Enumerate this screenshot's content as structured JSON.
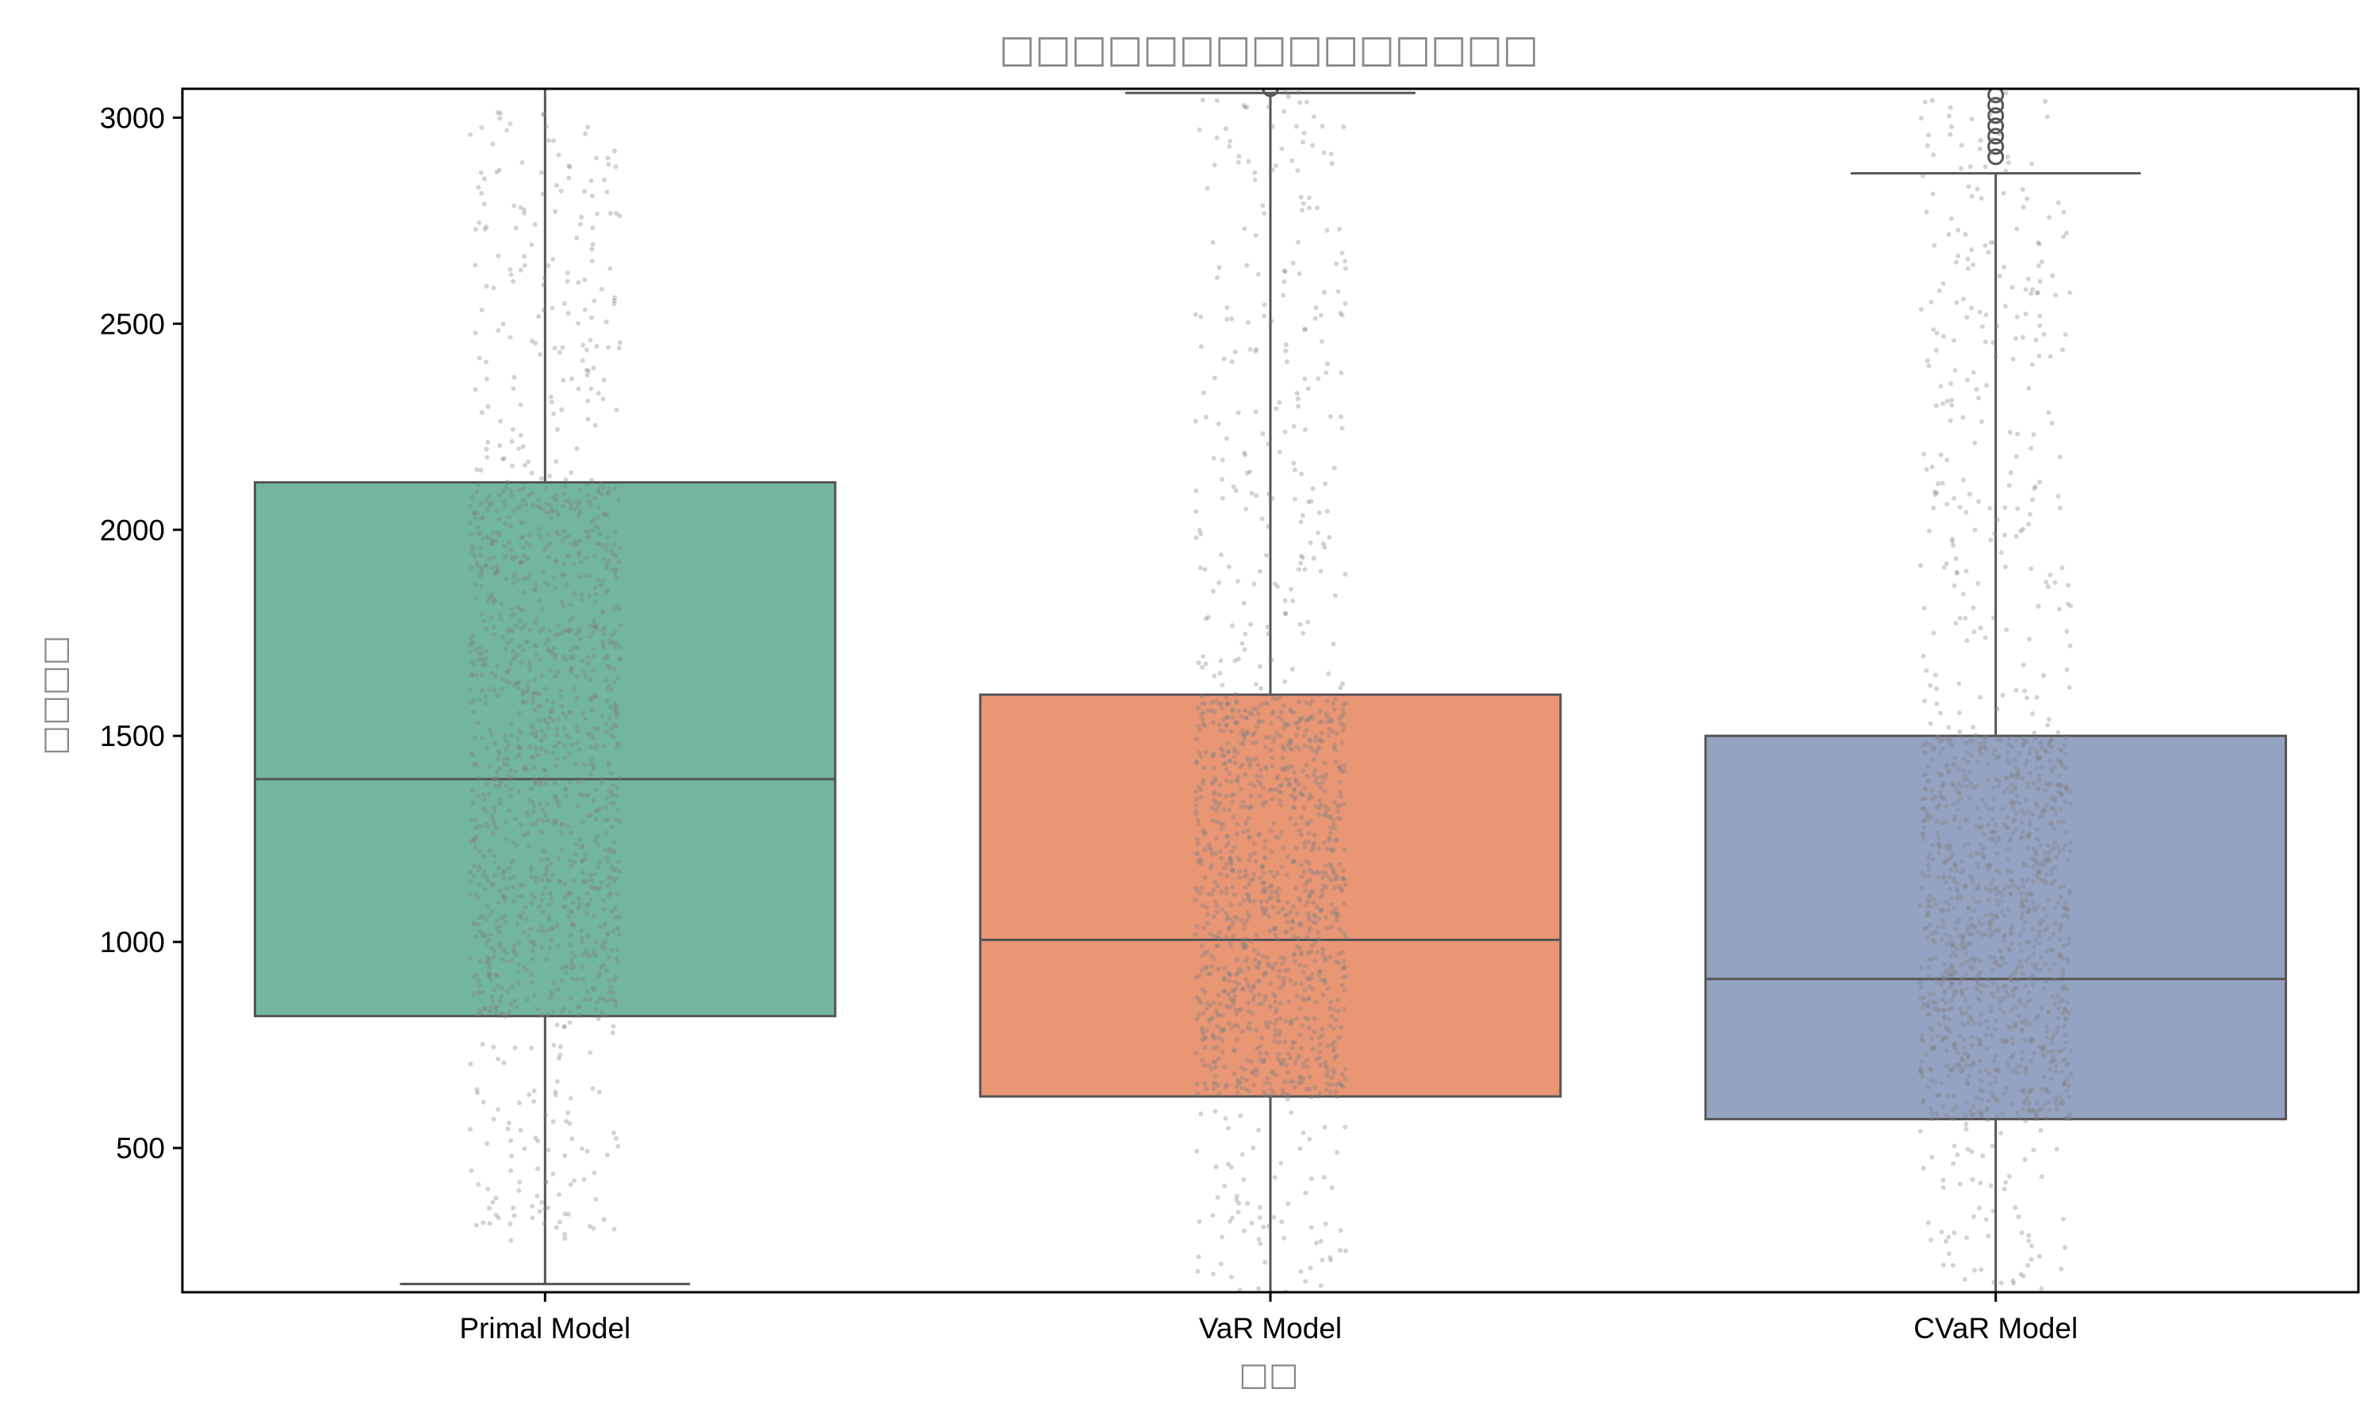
{
  "chart_data": {
    "type": "box",
    "title": "□□□□□□□□□□□□□□□",
    "xlabel": "□□",
    "ylabel": "□□□□",
    "categories": [
      "Primal Model",
      "VaR Model",
      "CVaR Model"
    ],
    "colors": [
      "#72b6a1",
      "#e99675",
      "#95a3c3"
    ],
    "ylim": [
      150,
      3070
    ],
    "yticks": [
      500,
      1000,
      1500,
      2000,
      2500,
      3000
    ],
    "grid": false,
    "boxes": [
      {
        "name": "Primal Model",
        "q1": 820,
        "median": 1395,
        "q3": 2115,
        "whisker_low": 170,
        "whisker_high": 3070,
        "outliers": []
      },
      {
        "name": "VaR Model",
        "q1": 625,
        "median": 1005,
        "q3": 1600,
        "whisker_low": 150,
        "whisker_high": 3060,
        "outliers": [
          3070
        ]
      },
      {
        "name": "CVaR Model",
        "q1": 570,
        "median": 910,
        "q3": 1500,
        "whisker_low": 150,
        "whisker_high": 2865,
        "outliers": [
          2905,
          2930,
          2955,
          2980,
          3005,
          3030,
          3055
        ]
      }
    ],
    "strip_points": {
      "color": "#808080",
      "description_ranges": [
        {
          "name": "Primal Model",
          "min": 270,
          "max": 3020
        },
        {
          "name": "VaR Model",
          "min": 150,
          "max": 3070
        },
        {
          "name": "CVaR Model",
          "min": 150,
          "max": 3070
        }
      ]
    }
  }
}
